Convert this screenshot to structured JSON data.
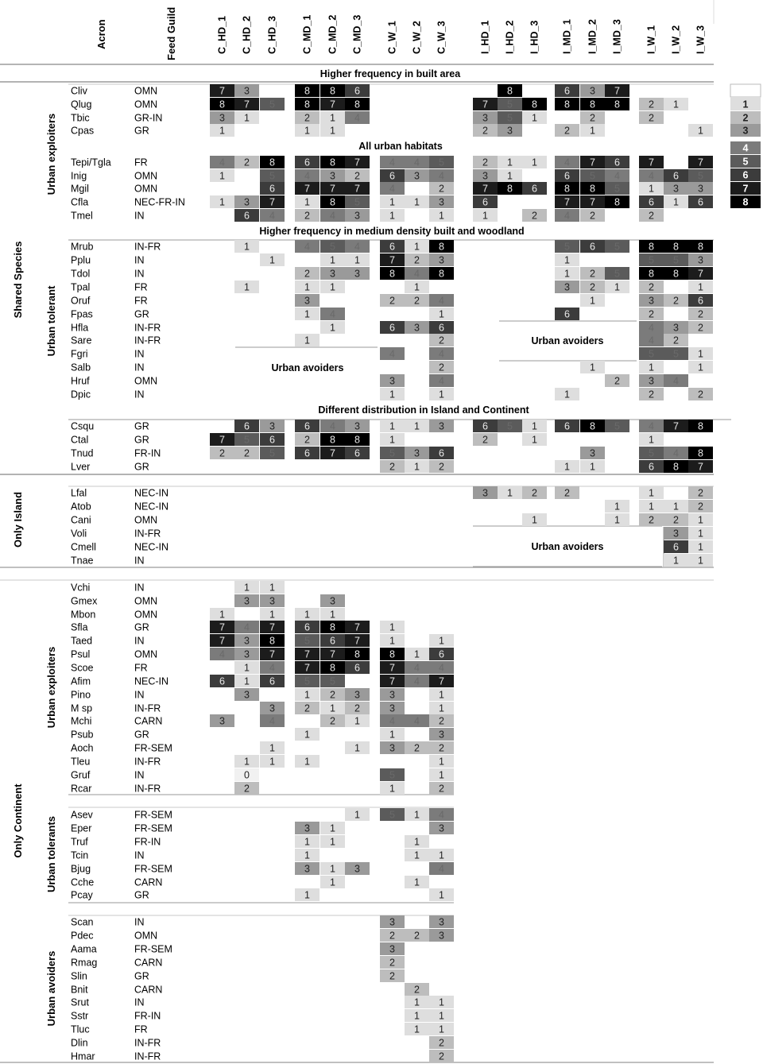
{
  "header": {
    "acron": "Acron",
    "feed_guild": "Feed Guild"
  },
  "columns": [
    "C_HD_1",
    "C_HD_2",
    "C_HD_3",
    "C_MD_1",
    "C_MD_2",
    "C_MD_3",
    "C_W_1",
    "C_W_2",
    "C_W_3",
    "I_HD_1",
    "I_HD_2",
    "I_HD_3",
    "I_MD_1",
    "I_MD_2",
    "I_MD_3",
    "I_W_1",
    "I_W_2",
    "I_W_3"
  ],
  "legend": [
    "",
    "1",
    "2",
    "3",
    "4",
    "5",
    "6",
    "7",
    "8"
  ],
  "group_labels": {
    "shared": "Shared Species",
    "shared_exploiters": "Urban exploiters",
    "shared_tolerant": "Urban tolerant",
    "island": "Only Island",
    "continent": "Only Continent",
    "cont_exploiters": "Urban exploiters",
    "cont_tolerants": "Urban tolerants",
    "cont_avoiders": "Urban avoiders"
  },
  "section_titles": {
    "built": "Higher frequency in built area",
    "all_urban": "All urban habitats",
    "medium": "Higher frequency in medium density built and woodland",
    "different": "Different distribution in Island and Continent"
  },
  "annotations": {
    "avoid_cmd": "Urban avoiders",
    "avoid_imd": "Urban avoiders",
    "avoid_island": "Urban avoiders"
  },
  "chart_data": {
    "type": "heatmap",
    "value_scale": [
      0,
      8
    ],
    "rows": [
      {
        "acron": "Cliv",
        "guild": "OMN",
        "values": {
          "C_HD_1": 7,
          "C_HD_2": 3,
          "C_MD_1": 8,
          "C_MD_2": 8,
          "C_MD_3": 6,
          "I_HD_2": 8,
          "I_MD_1": 6,
          "I_MD_2": 3,
          "I_MD_3": 7
        }
      },
      {
        "acron": "Qlug",
        "guild": "OMN",
        "values": {
          "C_HD_1": 8,
          "C_HD_2": 7,
          "C_HD_3": 5,
          "C_MD_1": 8,
          "C_MD_2": 7,
          "C_MD_3": 8,
          "I_HD_1": 7,
          "I_HD_2": 5,
          "I_HD_3": 8,
          "I_MD_1": 8,
          "I_MD_2": 8,
          "I_MD_3": 8,
          "I_W_1": 2,
          "I_W_2": 1
        }
      },
      {
        "acron": "Tbic",
        "guild": "GR-IN",
        "values": {
          "C_HD_1": 3,
          "C_HD_2": 1,
          "C_MD_1": 2,
          "C_MD_2": 1,
          "C_MD_3": 4,
          "I_HD_1": 3,
          "I_HD_2": 5,
          "I_HD_3": 1,
          "I_MD_2": 2,
          "I_W_1": 2
        }
      },
      {
        "acron": "Cpas",
        "guild": "GR",
        "values": {
          "C_HD_1": 1,
          "C_MD_1": 1,
          "C_MD_2": 1,
          "I_HD_1": 2,
          "I_HD_2": 3,
          "I_MD_1": 2,
          "I_MD_2": 1,
          "I_W_3": 1
        }
      },
      {
        "acron": "Tepi/Tgla",
        "guild": "FR",
        "values": {
          "C_HD_1": 4,
          "C_HD_2": 2,
          "C_HD_3": 8,
          "C_MD_1": 6,
          "C_MD_2": 8,
          "C_MD_3": 7,
          "C_W_1": 4,
          "C_W_2": 4,
          "C_W_3": 5,
          "I_HD_1": 2,
          "I_HD_2": 1,
          "I_HD_3": 1,
          "I_MD_1": 4,
          "I_MD_2": 7,
          "I_MD_3": 6,
          "I_W_1": 7,
          "I_W_3": 7
        }
      },
      {
        "acron": "Inig",
        "guild": "OMN",
        "values": {
          "C_HD_1": 1,
          "C_HD_3": 5,
          "C_MD_1": 4,
          "C_MD_2": 3,
          "C_MD_3": 2,
          "C_W_1": 6,
          "C_W_2": 3,
          "C_W_3": 4,
          "I_HD_1": 3,
          "I_HD_2": 1,
          "I_MD_1": 6,
          "I_MD_2": 5,
          "I_MD_3": 4,
          "I_W_1": 4,
          "I_W_2": 6,
          "I_W_3": 5
        }
      },
      {
        "acron": "Mgil",
        "guild": "OMN",
        "values": {
          "C_HD_3": 6,
          "C_MD_1": 7,
          "C_MD_2": 7,
          "C_MD_3": 7,
          "C_W_1": 4,
          "C_W_3": 2,
          "I_HD_1": 7,
          "I_HD_2": 8,
          "I_HD_3": 6,
          "I_MD_1": 8,
          "I_MD_2": 8,
          "I_MD_3": 5,
          "I_W_1": 1,
          "I_W_2": 3,
          "I_W_3": 3
        }
      },
      {
        "acron": "Cfla",
        "guild": "NEC-FR-IN",
        "values": {
          "C_HD_1": 1,
          "C_HD_2": 3,
          "C_HD_3": 7,
          "C_MD_1": 1,
          "C_MD_2": 8,
          "C_MD_3": 5,
          "C_W_1": 1,
          "C_W_2": 1,
          "C_W_3": 3,
          "I_HD_1": 6,
          "I_MD_1": 7,
          "I_MD_2": 7,
          "I_MD_3": 8,
          "I_W_1": 6,
          "I_W_2": 1,
          "I_W_3": 6
        }
      },
      {
        "acron": "Tmel",
        "guild": "IN",
        "values": {
          "C_HD_2": 6,
          "C_HD_3": 4,
          "C_MD_1": 2,
          "C_MD_2": 4,
          "C_MD_3": 3,
          "C_W_1": 1,
          "C_W_3": 1,
          "I_HD_1": 1,
          "I_HD_3": 2,
          "I_MD_1": 4,
          "I_MD_2": 2,
          "I_W_1": 2
        }
      },
      {
        "acron": "Mrub",
        "guild": "IN-FR",
        "values": {
          "C_HD_2": 1,
          "C_MD_1": 4,
          "C_MD_2": 5,
          "C_MD_3": 4,
          "C_W_1": 6,
          "C_W_2": 1,
          "C_W_3": 8,
          "I_MD_1": 5,
          "I_MD_2": 6,
          "I_MD_3": 5,
          "I_W_1": 8,
          "I_W_2": 8,
          "I_W_3": 8
        }
      },
      {
        "acron": "Pplu",
        "guild": "IN",
        "values": {
          "C_HD_3": 1,
          "C_MD_2": 1,
          "C_MD_3": 1,
          "C_W_1": 7,
          "C_W_2": 2,
          "C_W_3": 3,
          "I_MD_1": 1,
          "I_W_1": 5,
          "I_W_2": 5,
          "I_W_3": 3
        }
      },
      {
        "acron": "Tdol",
        "guild": "IN",
        "values": {
          "C_MD_1": 2,
          "C_MD_2": 3,
          "C_MD_3": 3,
          "C_W_1": 8,
          "C_W_2": 4,
          "C_W_3": 8,
          "I_MD_1": 1,
          "I_MD_2": 2,
          "I_MD_3": 5,
          "I_W_1": 8,
          "I_W_2": 8,
          "I_W_3": 7
        }
      },
      {
        "acron": "Tpal",
        "guild": "FR",
        "values": {
          "C_HD_2": 1,
          "C_MD_1": 1,
          "C_MD_2": 1,
          "C_W_2": 1,
          "I_MD_1": 3,
          "I_MD_2": 2,
          "I_MD_3": 1,
          "I_W_1": 2,
          "I_W_3": 1
        }
      },
      {
        "acron": "Oruf",
        "guild": "FR",
        "values": {
          "C_MD_1": 3,
          "C_W_1": 2,
          "C_W_2": 2,
          "C_W_3": 4,
          "I_MD_2": 1,
          "I_W_1": 3,
          "I_W_2": 2,
          "I_W_3": 6
        }
      },
      {
        "acron": "Fpas",
        "guild": "GR",
        "values": {
          "C_MD_1": 1,
          "C_MD_2": 4,
          "C_W_3": 1,
          "I_MD_1": 6,
          "I_W_1": 2,
          "I_W_3": 2
        }
      },
      {
        "acron": "Hfla",
        "guild": "IN-FR",
        "values": {
          "C_MD_2": 1,
          "C_W_1": 6,
          "C_W_2": 3,
          "C_W_3": 6,
          "I_W_1": 4,
          "I_W_2": 3,
          "I_W_3": 2
        }
      },
      {
        "acron": "Sare",
        "guild": "IN-FR",
        "values": {
          "C_MD_1": 1,
          "C_W_3": 2,
          "I_W_1": 4,
          "I_W_2": 2
        }
      },
      {
        "acron": "Fgri",
        "guild": "IN",
        "values": {
          "C_W_1": 4,
          "C_W_3": 4,
          "I_W_1": 5,
          "I_W_2": 5,
          "I_W_3": 1
        }
      },
      {
        "acron": "Salb",
        "guild": "IN",
        "values": {
          "C_W_3": 2,
          "I_MD_2": 1,
          "I_W_1": 1,
          "I_W_3": 1
        }
      },
      {
        "acron": "Hruf",
        "guild": "OMN",
        "values": {
          "C_W_1": 3,
          "C_W_3": 4,
          "I_MD_3": 2,
          "I_W_1": 3,
          "I_W_2": 4
        }
      },
      {
        "acron": "Dpic",
        "guild": "IN",
        "values": {
          "C_W_1": 1,
          "C_W_3": 1,
          "I_MD_1": 1,
          "I_W_1": 2,
          "I_W_3": 2
        }
      },
      {
        "acron": "Csqu",
        "guild": "GR",
        "values": {
          "C_HD_2": 6,
          "C_HD_3": 3,
          "C_MD_1": 6,
          "C_MD_2": 4,
          "C_MD_3": 3,
          "C_W_1": 1,
          "C_W_2": 1,
          "C_W_3": 3,
          "I_HD_1": 6,
          "I_HD_2": 5,
          "I_HD_3": 1,
          "I_MD_1": 6,
          "I_MD_2": 8,
          "I_MD_3": 5,
          "I_W_1": 4,
          "I_W_2": 7,
          "I_W_3": 8
        }
      },
      {
        "acron": "Ctal",
        "guild": "GR",
        "values": {
          "C_HD_1": 7,
          "C_HD_2": 5,
          "C_HD_3": 6,
          "C_MD_1": 2,
          "C_MD_2": 8,
          "C_MD_3": 8,
          "C_W_1": 1,
          "I_HD_1": 2,
          "I_HD_3": 1,
          "I_W_1": 1
        }
      },
      {
        "acron": "Tnud",
        "guild": "FR-IN",
        "values": {
          "C_HD_1": 2,
          "C_HD_2": 2,
          "C_HD_3": 5,
          "C_MD_1": 6,
          "C_MD_2": 7,
          "C_MD_3": 6,
          "C_W_1": 5,
          "C_W_2": 3,
          "C_W_3": 6,
          "I_MD_2": 3,
          "I_W_1": 5,
          "I_W_2": 4,
          "I_W_3": 8
        }
      },
      {
        "acron": "Lver",
        "guild": "GR",
        "values": {
          "C_W_1": 2,
          "C_W_2": 1,
          "C_W_3": 2,
          "I_MD_1": 1,
          "I_MD_2": 1,
          "I_W_1": 6,
          "I_W_2": 8,
          "I_W_3": 7
        }
      },
      {
        "acron": "Lfal",
        "guild": "NEC-IN",
        "values": {
          "I_HD_1": 3,
          "I_HD_2": 1,
          "I_HD_3": 2,
          "I_MD_1": 2,
          "I_W_1": 1,
          "I_W_3": 2
        }
      },
      {
        "acron": "Atob",
        "guild": "NEC-IN",
        "values": {
          "I_MD_3": 1,
          "I_W_1": 1,
          "I_W_2": 1,
          "I_W_3": 2
        }
      },
      {
        "acron": "Cani",
        "guild": "OMN",
        "values": {
          "I_HD_3": 1,
          "I_MD_3": 1,
          "I_W_1": 2,
          "I_W_2": 2,
          "I_W_3": 1
        }
      },
      {
        "acron": "Voli",
        "guild": "IN-FR",
        "values": {
          "I_W_2": 3,
          "I_W_3": 1
        }
      },
      {
        "acron": "Cmell",
        "guild": "NEC-IN",
        "values": {
          "I_W_2": 6,
          "I_W_3": 1
        }
      },
      {
        "acron": "Tnae",
        "guild": "IN",
        "values": {
          "I_W_2": 1,
          "I_W_3": 1
        }
      },
      {
        "acron": "Vchi",
        "guild": "IN",
        "values": {
          "C_HD_2": 1,
          "C_HD_3": 1
        }
      },
      {
        "acron": "Gmex",
        "guild": "OMN",
        "values": {
          "C_HD_2": 3,
          "C_HD_3": 3,
          "C_MD_2": 3
        }
      },
      {
        "acron": "Mbon",
        "guild": "OMN",
        "values": {
          "C_HD_1": 1,
          "C_HD_3": 1,
          "C_MD_1": 1,
          "C_MD_2": 1
        }
      },
      {
        "acron": "Sfla",
        "guild": "GR",
        "values": {
          "C_HD_1": 7,
          "C_HD_2": 4,
          "C_HD_3": 7,
          "C_MD_1": 6,
          "C_MD_2": 8,
          "C_MD_3": 7,
          "C_W_1": 1
        }
      },
      {
        "acron": "Taed",
        "guild": "IN",
        "values": {
          "C_HD_1": 7,
          "C_HD_2": 3,
          "C_HD_3": 8,
          "C_MD_1": 5,
          "C_MD_2": 6,
          "C_MD_3": 7,
          "C_W_1": 1,
          "C_W_3": 1
        }
      },
      {
        "acron": "Psul",
        "guild": "OMN",
        "values": {
          "C_HD_1": 4,
          "C_HD_2": 3,
          "C_HD_3": 7,
          "C_MD_1": 7,
          "C_MD_2": 7,
          "C_MD_3": 8,
          "C_W_1": 8,
          "C_W_2": 1,
          "C_W_3": 6
        }
      },
      {
        "acron": "Scoe",
        "guild": "FR",
        "values": {
          "C_HD_2": 1,
          "C_HD_3": 4,
          "C_MD_1": 7,
          "C_MD_2": 8,
          "C_MD_3": 6,
          "C_W_1": 7,
          "C_W_2": 4,
          "C_W_3": 4
        }
      },
      {
        "acron": "Afim",
        "guild": "NEC-IN",
        "values": {
          "C_HD_1": 6,
          "C_HD_2": 1,
          "C_HD_3": 6,
          "C_MD_1": 5,
          "C_MD_2": 5,
          "C_W_1": 7,
          "C_W_2": 4,
          "C_W_3": 7
        }
      },
      {
        "acron": "Pino",
        "guild": "IN",
        "values": {
          "C_HD_2": 3,
          "C_MD_1": 1,
          "C_MD_2": 2,
          "C_MD_3": 3,
          "C_W_1": 3,
          "C_W_3": 1
        }
      },
      {
        "acron": "M sp",
        "guild": "IN-FR",
        "values": {
          "C_HD_3": 3,
          "C_MD_1": 2,
          "C_MD_2": 1,
          "C_MD_3": 2,
          "C_W_1": 3,
          "C_W_3": 1
        }
      },
      {
        "acron": "Mchi",
        "guild": "CARN",
        "values": {
          "C_HD_1": 3,
          "C_HD_3": 4,
          "C_MD_2": 2,
          "C_MD_3": 1,
          "C_W_1": 4,
          "C_W_2": 4,
          "C_W_3": 2
        }
      },
      {
        "acron": "Psub",
        "guild": "GR",
        "values": {
          "C_MD_1": 1,
          "C_W_1": 1,
          "C_W_3": 3
        }
      },
      {
        "acron": "Aoch",
        "guild": "FR-SEM",
        "values": {
          "C_HD_3": 1,
          "C_MD_3": 1,
          "C_W_1": 3,
          "C_W_2": 2,
          "C_W_3": 2
        }
      },
      {
        "acron": "Tleu",
        "guild": "IN-FR",
        "values": {
          "C_HD_2": 1,
          "C_HD_3": 1,
          "C_MD_1": 1,
          "C_W_3": 1
        }
      },
      {
        "acron": "Gruf",
        "guild": "IN",
        "values": {
          "C_HD_2": 0,
          "C_W_1": 5,
          "C_W_3": 1
        }
      },
      {
        "acron": "Rcar",
        "guild": "IN-FR",
        "values": {
          "C_HD_2": 2,
          "C_W_1": 1,
          "C_W_3": 2
        }
      },
      {
        "acron": "Asev",
        "guild": "FR-SEM",
        "values": {
          "C_MD_3": 1,
          "C_W_1": 5,
          "C_W_2": 1,
          "C_W_3": 4
        }
      },
      {
        "acron": "Eper",
        "guild": "FR-SEM",
        "values": {
          "C_MD_1": 3,
          "C_MD_2": 1,
          "C_W_3": 3
        }
      },
      {
        "acron": "Truf",
        "guild": "FR-IN",
        "values": {
          "C_MD_1": 1,
          "C_MD_2": 1,
          "C_W_2": 1
        }
      },
      {
        "acron": "Tcin",
        "guild": "IN",
        "values": {
          "C_MD_1": 1,
          "C_W_2": 1,
          "C_W_3": 1
        }
      },
      {
        "acron": "Bjug",
        "guild": "FR-SEM",
        "values": {
          "C_MD_1": 3,
          "C_MD_2": 1,
          "C_MD_3": 3,
          "C_W_3": 4
        }
      },
      {
        "acron": "Cche",
        "guild": "CARN",
        "values": {
          "C_MD_2": 1,
          "C_W_2": 1
        }
      },
      {
        "acron": "Pcay",
        "guild": "GR",
        "values": {
          "C_MD_1": 1,
          "C_W_3": 1
        }
      },
      {
        "acron": "Scan",
        "guild": "IN",
        "values": {
          "C_W_1": 3,
          "C_W_3": 3
        }
      },
      {
        "acron": "Pdec",
        "guild": "OMN",
        "values": {
          "C_W_1": 2,
          "C_W_2": 2,
          "C_W_3": 3
        }
      },
      {
        "acron": "Aama",
        "guild": "FR-SEM",
        "values": {
          "C_W_1": 3
        }
      },
      {
        "acron": "Rmag",
        "guild": "CARN",
        "values": {
          "C_W_1": 2
        }
      },
      {
        "acron": "Slin",
        "guild": "GR",
        "values": {
          "C_W_1": 2
        }
      },
      {
        "acron": "Bnit",
        "guild": "CARN",
        "values": {
          "C_W_2": 2
        }
      },
      {
        "acron": "Srut",
        "guild": "IN",
        "values": {
          "C_W_2": 1,
          "C_W_3": 1
        }
      },
      {
        "acron": "Sstr",
        "guild": "FR-IN",
        "values": {
          "C_W_2": 1,
          "C_W_3": 1
        }
      },
      {
        "acron": "Tluc",
        "guild": "FR",
        "values": {
          "C_W_2": 1,
          "C_W_3": 1
        }
      },
      {
        "acron": "Dlin",
        "guild": "IN-FR",
        "values": {
          "C_W_3": 2
        }
      },
      {
        "acron": "Hmar",
        "guild": "IN-FR",
        "values": {
          "C_W_3": 2
        }
      }
    ]
  }
}
